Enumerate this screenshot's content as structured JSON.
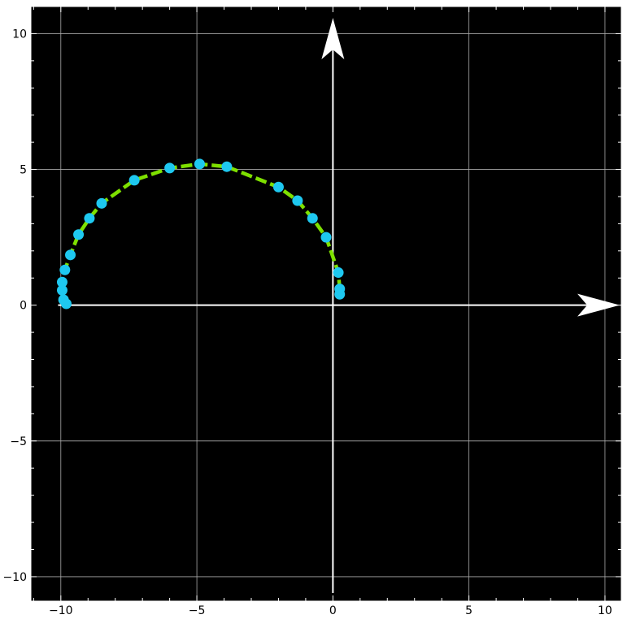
{
  "chart_data": {
    "type": "scatter",
    "title": "",
    "xlabel": "",
    "ylabel": "",
    "xlim": [
      -11.1,
      10.6
    ],
    "ylim": [
      -10.9,
      11.0
    ],
    "grid": true,
    "x_ticks": [
      -10,
      -5,
      0,
      5,
      10
    ],
    "y_ticks": [
      -10,
      -5,
      0,
      5,
      10
    ],
    "x_tick_labels": [
      "−10",
      "−5",
      "0",
      "5",
      "10"
    ],
    "y_tick_labels": [
      "−10",
      "−5",
      "0",
      "5",
      "10"
    ],
    "series": [
      {
        "points": [
          [
            -9.8,
            0.05
          ],
          [
            -9.9,
            0.2
          ],
          [
            -9.95,
            0.55
          ],
          [
            -9.95,
            0.85
          ],
          [
            -9.85,
            1.3
          ],
          [
            -9.65,
            1.85
          ],
          [
            -9.35,
            2.6
          ],
          [
            -8.95,
            3.2
          ],
          [
            -8.5,
            3.75
          ],
          [
            -7.3,
            4.6
          ],
          [
            -6.0,
            5.05
          ],
          [
            -4.9,
            5.2
          ],
          [
            -3.9,
            5.1
          ],
          [
            -2.0,
            4.35
          ],
          [
            -1.3,
            3.85
          ],
          [
            -0.75,
            3.2
          ],
          [
            -0.25,
            2.5
          ],
          [
            0.2,
            1.2
          ],
          [
            0.25,
            0.6
          ],
          [
            0.25,
            0.4
          ]
        ]
      }
    ],
    "colors": {
      "background": "#000000",
      "frame": "#ffffff",
      "grid": "#aaaaaa",
      "axes": "#ffffff",
      "line": "#7ee000",
      "points": "#1ec8f0"
    }
  }
}
